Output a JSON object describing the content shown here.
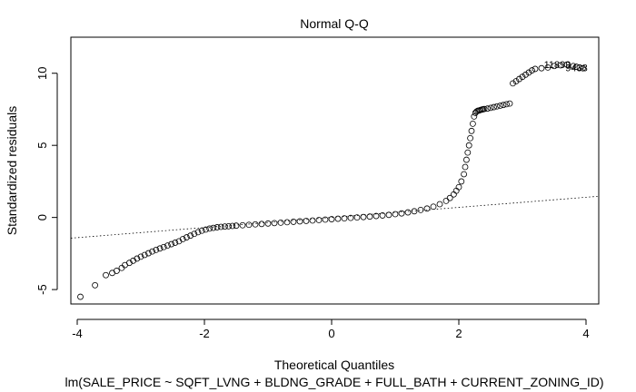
{
  "chart_data": {
    "type": "scatter",
    "title": "Normal Q-Q",
    "xlabel": "Theoretical Quantiles",
    "ylabel": "Standardized residuals",
    "subtitle": "lm(SALE_PRICE ~ SQFT_LVNG + BLDNG_GRADE + FULL_BATH + CURRENT_ZONING_ID)",
    "xlim": [
      -4.1,
      4.2
    ],
    "ylim": [
      -6.0,
      12.5
    ],
    "x_ticks": [
      -4,
      -2,
      0,
      2,
      4
    ],
    "y_ticks": [
      -5,
      0,
      5,
      10
    ],
    "grid": false,
    "reference_line": {
      "style": "dotted",
      "intercept": 0.0,
      "slope": 0.35
    },
    "point_labels": [
      {
        "text": "11899",
        "x": 3.55,
        "y": 10.6
      },
      {
        "text": "9438",
        "x": 3.85,
        "y": 10.4
      }
    ],
    "series": [
      {
        "style": "open-circle",
        "x": [
          -3.95,
          -3.72,
          -3.55,
          -3.45,
          -3.38,
          -3.3,
          -3.25,
          -3.18,
          -3.12,
          -3.06,
          -3.0,
          -2.94,
          -2.88,
          -2.82,
          -2.76,
          -2.7,
          -2.64,
          -2.58,
          -2.52,
          -2.46,
          -2.4,
          -2.34,
          -2.28,
          -2.22,
          -2.16,
          -2.1,
          -2.04,
          -1.98,
          -1.92,
          -1.86,
          -1.8,
          -1.74,
          -1.68,
          -1.62,
          -1.56,
          -1.5,
          -1.4,
          -1.3,
          -1.2,
          -1.1,
          -1.0,
          -0.9,
          -0.8,
          -0.7,
          -0.6,
          -0.5,
          -0.4,
          -0.3,
          -0.2,
          -0.1,
          0.0,
          0.1,
          0.2,
          0.3,
          0.4,
          0.5,
          0.6,
          0.7,
          0.8,
          0.9,
          1.0,
          1.1,
          1.2,
          1.3,
          1.4,
          1.5,
          1.6,
          1.7,
          1.8,
          1.86,
          1.92,
          1.96,
          2.0,
          2.04,
          2.08,
          2.1,
          2.12,
          2.14,
          2.16,
          2.18,
          2.2,
          2.22,
          2.24,
          2.26,
          2.28,
          2.3,
          2.32,
          2.34,
          2.36,
          2.38,
          2.4,
          2.45,
          2.5,
          2.55,
          2.6,
          2.65,
          2.7,
          2.75,
          2.8,
          2.85,
          2.9,
          2.95,
          3.0,
          3.05,
          3.1,
          3.15,
          3.2,
          3.3,
          3.4,
          3.5,
          3.6,
          3.7,
          3.8,
          3.85,
          3.9,
          3.95
        ],
        "y": [
          -5.5,
          -4.7,
          -4.0,
          -3.85,
          -3.7,
          -3.5,
          -3.3,
          -3.15,
          -3.0,
          -2.85,
          -2.72,
          -2.6,
          -2.48,
          -2.36,
          -2.25,
          -2.15,
          -2.05,
          -1.95,
          -1.85,
          -1.75,
          -1.65,
          -1.5,
          -1.38,
          -1.26,
          -1.14,
          -1.02,
          -0.92,
          -0.84,
          -0.77,
          -0.72,
          -0.68,
          -0.65,
          -0.63,
          -0.61,
          -0.59,
          -0.57,
          -0.54,
          -0.51,
          -0.48,
          -0.45,
          -0.42,
          -0.39,
          -0.36,
          -0.33,
          -0.3,
          -0.27,
          -0.24,
          -0.21,
          -0.18,
          -0.15,
          -0.12,
          -0.09,
          -0.06,
          -0.03,
          0.0,
          0.03,
          0.06,
          0.1,
          0.14,
          0.18,
          0.23,
          0.28,
          0.35,
          0.43,
          0.52,
          0.62,
          0.75,
          0.92,
          1.15,
          1.35,
          1.6,
          1.85,
          2.1,
          2.5,
          3.0,
          3.5,
          4.0,
          4.5,
          5.0,
          5.5,
          6.0,
          6.5,
          7.0,
          7.25,
          7.35,
          7.4,
          7.42,
          7.45,
          7.48,
          7.5,
          7.52,
          7.55,
          7.6,
          7.65,
          7.7,
          7.75,
          7.8,
          7.85,
          7.9,
          9.3,
          9.45,
          9.6,
          9.75,
          9.9,
          10.05,
          10.2,
          10.3,
          10.35,
          10.4,
          10.5,
          10.55,
          10.6,
          10.5,
          10.45,
          10.4,
          10.35
        ]
      }
    ]
  }
}
